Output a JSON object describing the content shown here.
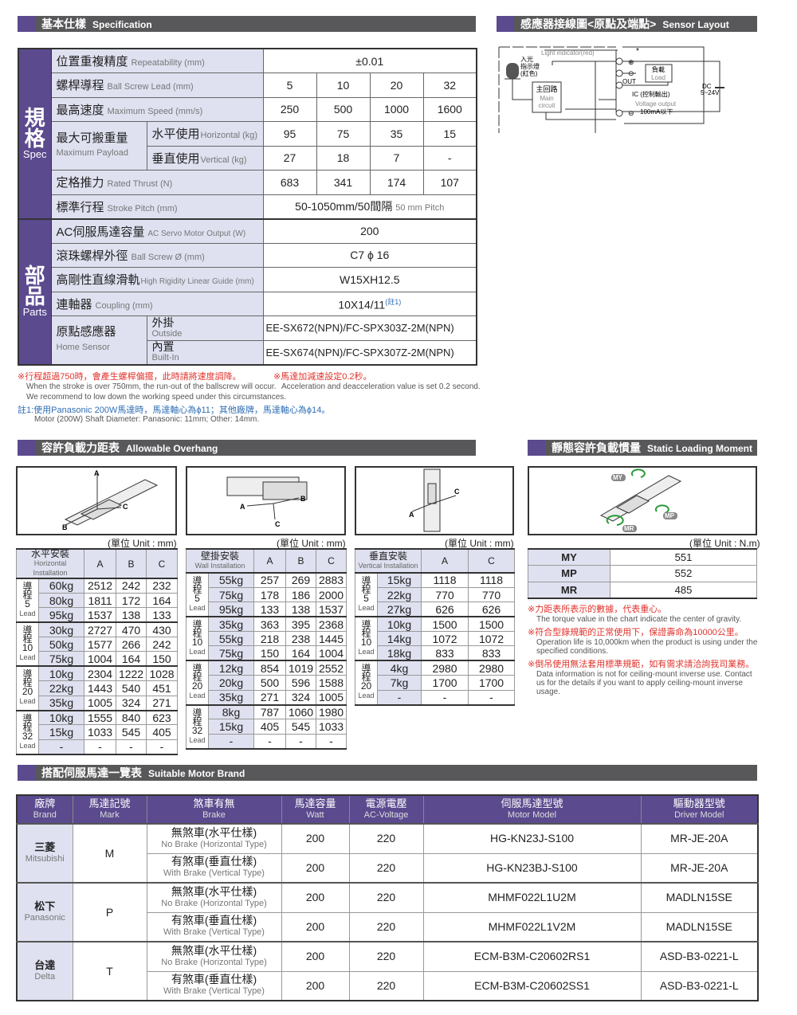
{
  "spec": {
    "header_zh": "基本仕樣",
    "header_en": "Specification",
    "group_spec": {
      "zh": "規格",
      "en": "Spec"
    },
    "group_parts": {
      "zh": "部品",
      "en": "Parts"
    },
    "repeatability": {
      "zh": "位置重複精度",
      "en": "Repeatability (mm)",
      "value": "±0.01"
    },
    "lead": {
      "zh": "螺桿導程",
      "en": "Ball Screw Lead (mm)",
      "values": [
        "5",
        "10",
        "20",
        "32"
      ]
    },
    "speed": {
      "zh": "最高速度",
      "en": "Maximum Speed (mm/s)",
      "values": [
        "250",
        "500",
        "1000",
        "1600"
      ]
    },
    "payload": {
      "zh": "最大可搬重量",
      "en": "Maximum Payload",
      "horizontal": {
        "zh": "水平使用",
        "en": "Horizontal (kg)",
        "values": [
          "95",
          "75",
          "35",
          "15"
        ]
      },
      "vertical": {
        "zh": "垂直使用",
        "en": "Vertical (kg)",
        "values": [
          "27",
          "18",
          "7",
          "-"
        ]
      }
    },
    "thrust": {
      "zh": "定格推力",
      "en": "Rated Thrust (N)",
      "values": [
        "683",
        "341",
        "174",
        "107"
      ]
    },
    "stroke": {
      "zh": "標準行程",
      "en": "Stroke Pitch (mm)",
      "value": "50-1050mm/50間隔",
      "value_en": "50 mm Pitch"
    },
    "motor": {
      "zh": "AC伺服馬達容量",
      "en": "AC Servo Motor Output (W)",
      "value": "200"
    },
    "screw": {
      "zh": "滾珠螺桿外徑",
      "en": "Ball Screw Ø (mm)",
      "value": "C7 ϕ 16"
    },
    "guide": {
      "zh": "高剛性直線滑軌",
      "en": "High Rigidity Linear Guide (mm)",
      "value": "W15XH12.5"
    },
    "coupling": {
      "zh": "連軸器",
      "en": "Coupling (mm)",
      "value": "10X14/11",
      "note": "(註1)"
    },
    "sensor": {
      "zh": "原點感應器",
      "en": "Home Sensor",
      "outside": {
        "zh": "外掛",
        "en": "Outside",
        "value": "EE-SX672(NPN)/FC-SPX303Z-2M(NPN)"
      },
      "builtin": {
        "zh": "內置",
        "en": "Built-In",
        "value": "EE-SX674(NPN)/FC-SPX307Z-2M(NPN)"
      }
    }
  },
  "notes": {
    "n1_zh": "※行程超過750時，會產生螺桿偏擺，此時請將速度調降。",
    "n1_en1": "When the stroke is over 750mm, the run-out of the ballscrew will occur.",
    "n1_en2": "We recommend to low down the working speed under this circumstances.",
    "n2_zh": "※馬達加減速設定0.2秒。",
    "n2_en": "Acceleration and deacceleration value is set 0.2 second.",
    "n3_zh": "註1:使用Panasonic 200W馬達時，馬達軸心為ϕ11；其他廠牌，馬達軸心為ϕ14。",
    "n3_en": "Motor (200W) Shaft Diameter: Panasonic: 11mm; Other: 14mm."
  },
  "sensor_layout": {
    "header_zh": "感應器接線圖<原點及端點>",
    "header_en": "Sensor Layout",
    "light_indicator": "Light indicator(red)",
    "light_zh1": "入光",
    "light_zh2": "指示燈",
    "light_zh3": "(紅色)",
    "main_zh": "主回路",
    "main_en1": "Main",
    "main_en2": "circuit",
    "load_zh": "負載",
    "load_en": "Load",
    "out": "OUT",
    "ic": "IC (控制輸出)",
    "voltage_output": "Voltage output",
    "current": "100mA以下",
    "dc": "DC",
    "dc_v": "5~24V",
    "star": "*"
  },
  "overhang": {
    "header_zh": "容許負載力距表",
    "header_en": "Allowable Overhang",
    "unit": "(單位 Unit : mm)",
    "lead_zh": "導程",
    "lead_en": "Lead",
    "labels": {
      "a": "A",
      "b": "B",
      "c": "C"
    },
    "horizontal": {
      "zh": "水平安裝",
      "en": "Horizontal Installation",
      "cols": [
        "A",
        "B",
        "C"
      ],
      "groups": [
        {
          "lead": "5",
          "rows": [
            [
              "60kg",
              "2512",
              "242",
              "232"
            ],
            [
              "80kg",
              "1811",
              "172",
              "164"
            ],
            [
              "95kg",
              "1537",
              "138",
              "133"
            ]
          ]
        },
        {
          "lead": "10",
          "rows": [
            [
              "30kg",
              "2727",
              "470",
              "430"
            ],
            [
              "50kg",
              "1577",
              "266",
              "242"
            ],
            [
              "75kg",
              "1004",
              "164",
              "150"
            ]
          ]
        },
        {
          "lead": "20",
          "rows": [
            [
              "10kg",
              "2304",
              "1222",
              "1028"
            ],
            [
              "22kg",
              "1443",
              "540",
              "451"
            ],
            [
              "35kg",
              "1005",
              "324",
              "271"
            ]
          ]
        },
        {
          "lead": "32",
          "rows": [
            [
              "10kg",
              "1555",
              "840",
              "623"
            ],
            [
              "15kg",
              "1033",
              "545",
              "405"
            ],
            [
              "-",
              "-",
              "-",
              "-"
            ]
          ]
        }
      ]
    },
    "wall": {
      "zh": "壁掛安裝",
      "en": "Wall Installation",
      "cols": [
        "A",
        "B",
        "C"
      ],
      "groups": [
        {
          "lead": "5",
          "rows": [
            [
              "55kg",
              "257",
              "269",
              "2883"
            ],
            [
              "75kg",
              "178",
              "186",
              "2000"
            ],
            [
              "95kg",
              "133",
              "138",
              "1537"
            ]
          ]
        },
        {
          "lead": "10",
          "rows": [
            [
              "35kg",
              "363",
              "395",
              "2368"
            ],
            [
              "55kg",
              "218",
              "238",
              "1445"
            ],
            [
              "75kg",
              "150",
              "164",
              "1004"
            ]
          ]
        },
        {
          "lead": "20",
          "rows": [
            [
              "12kg",
              "854",
              "1019",
              "2552"
            ],
            [
              "20kg",
              "500",
              "596",
              "1588"
            ],
            [
              "35kg",
              "271",
              "324",
              "1005"
            ]
          ]
        },
        {
          "lead": "32",
          "rows": [
            [
              "8kg",
              "787",
              "1060",
              "1980"
            ],
            [
              "15kg",
              "405",
              "545",
              "1033"
            ],
            [
              "-",
              "-",
              "-",
              "-"
            ]
          ]
        }
      ]
    },
    "vertical": {
      "zh": "垂直安裝",
      "en": "Vertical Installation",
      "cols": [
        "A",
        "C"
      ],
      "groups": [
        {
          "lead": "5",
          "rows": [
            [
              "15kg",
              "1118",
              "1118"
            ],
            [
              "22kg",
              "770",
              "770"
            ],
            [
              "27kg",
              "626",
              "626"
            ]
          ]
        },
        {
          "lead": "10",
          "rows": [
            [
              "10kg",
              "1500",
              "1500"
            ],
            [
              "14kg",
              "1072",
              "1072"
            ],
            [
              "18kg",
              "833",
              "833"
            ]
          ]
        },
        {
          "lead": "20",
          "rows": [
            [
              "4kg",
              "2980",
              "2980"
            ],
            [
              "7kg",
              "1700",
              "1700"
            ],
            [
              "-",
              "-",
              "-"
            ]
          ]
        }
      ]
    }
  },
  "static": {
    "header_zh": "靜態容許負載慣量",
    "header_en": "Static Loading Moment",
    "unit": "(單位 Unit : N.m)",
    "labels": {
      "my": "MY",
      "mp": "MP",
      "mr": "MR"
    },
    "rows": [
      {
        "k": "MY",
        "v": "551"
      },
      {
        "k": "MP",
        "v": "552"
      },
      {
        "k": "MR",
        "v": "485"
      }
    ],
    "notes": [
      {
        "zh": "※力距表所表示的數據，代表重心。",
        "en": "The torque value in the chart indicate the center of gravity."
      },
      {
        "zh": "※符合型錄規範的正常使用下，保證壽命為10000公里。",
        "en": "Operation life is 10,000km when the product is using under the specified conditions."
      },
      {
        "zh": "※倒吊使用無法套用標準規範，如有需求請洽詢我司業務。",
        "en": "Data information is not for ceiling-mount inverse use. Contact us for the details if you want to apply ceiling-mount inverse usage."
      }
    ]
  },
  "motors": {
    "header_zh": "搭配伺服馬達一覽表",
    "header_en": "Suitable Motor Brand",
    "columns": [
      {
        "zh": "廠牌",
        "en": "Brand"
      },
      {
        "zh": "馬達記號",
        "en": "Mark"
      },
      {
        "zh": "煞車有無",
        "en": "Brake"
      },
      {
        "zh": "馬達容量",
        "en": "Watt"
      },
      {
        "zh": "電源電壓",
        "en": "AC-Voltage"
      },
      {
        "zh": "伺服馬達型號",
        "en": "Motor Model"
      },
      {
        "zh": "驅動器型號",
        "en": "Driver Model"
      }
    ],
    "brands": [
      {
        "zh": "三菱",
        "en": "Mitsubishi",
        "mark": "M",
        "rows": [
          {
            "brake_zh": "無煞車(水平仕樣)",
            "brake_en": "No Brake (Horizontal Type)",
            "watt": "200",
            "volt": "220",
            "motor": "HG-KN23J-S100",
            "driver": "MR-JE-20A"
          },
          {
            "brake_zh": "有煞車(垂直仕樣)",
            "brake_en": "With Brake (Vertical Type)",
            "watt": "200",
            "volt": "220",
            "motor": "HG-KN23BJ-S100",
            "driver": "MR-JE-20A"
          }
        ]
      },
      {
        "zh": "松下",
        "en": "Panasonic",
        "mark": "P",
        "rows": [
          {
            "brake_zh": "無煞車(水平仕樣)",
            "brake_en": "No Brake (Horizontal Type)",
            "watt": "200",
            "volt": "220",
            "motor": "MHMF022L1U2M",
            "driver": "MADLN15SE"
          },
          {
            "brake_zh": "有煞車(垂直仕樣)",
            "brake_en": "With Brake (Vertical Type)",
            "watt": "200",
            "volt": "220",
            "motor": "MHMF022L1V2M",
            "driver": "MADLN15SE"
          }
        ]
      },
      {
        "zh": "台達",
        "en": "Delta",
        "mark": "T",
        "rows": [
          {
            "brake_zh": "無煞車(水平仕樣)",
            "brake_en": "No Brake (Horizontal Type)",
            "watt": "200",
            "volt": "220",
            "motor": "ECM-B3M-C20602RS1",
            "driver": "ASD-B3-0221-L"
          },
          {
            "brake_zh": "有煞車(垂直仕樣)",
            "brake_en": "With Brake (Vertical Type)",
            "watt": "200",
            "volt": "220",
            "motor": "ECM-B3M-C20602SS1",
            "driver": "ASD-B3-0221-L"
          }
        ]
      }
    ]
  },
  "colors": {
    "accent": "#5b4a8e",
    "header_bar": "#58585a",
    "cell_tint": "#dfe1f0",
    "note_red": "#e0332c",
    "note_blue": "#2f6fb5"
  }
}
